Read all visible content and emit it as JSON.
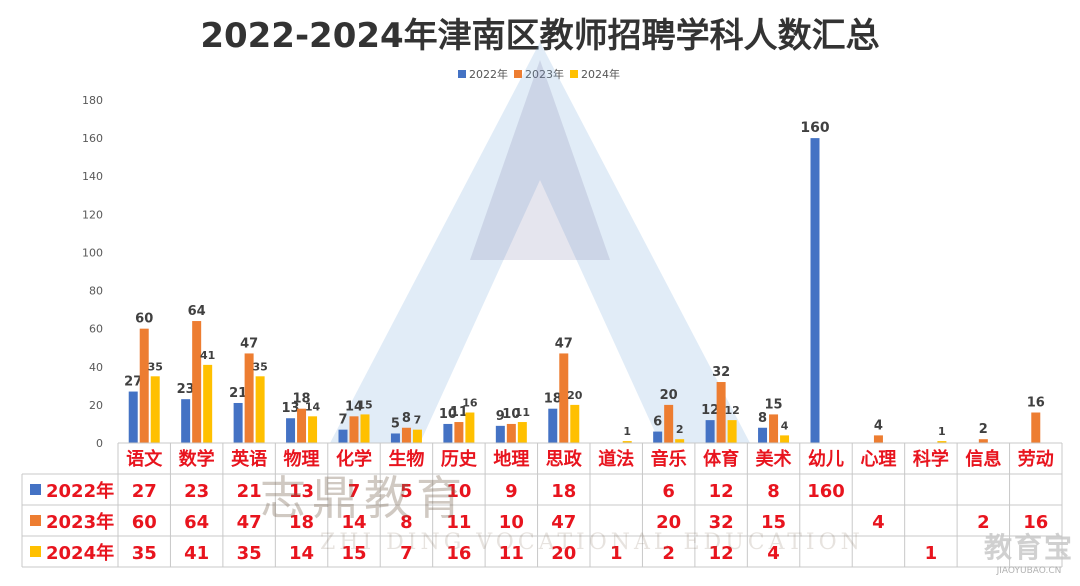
{
  "title": "2022-2024年津南区教师招聘学科人数汇总",
  "chart_data": {
    "type": "bar",
    "ylim": [
      0,
      180
    ],
    "yticks": [
      0,
      20,
      40,
      60,
      80,
      100,
      120,
      140,
      160,
      180
    ],
    "categories": [
      "语文",
      "数学",
      "英语",
      "物理",
      "化学",
      "生物",
      "历史",
      "地理",
      "思政",
      "道法",
      "音乐",
      "体育",
      "美术",
      "幼儿",
      "心理",
      "科学",
      "信息",
      "劳动"
    ],
    "series": [
      {
        "name": "2022年",
        "color": "#4472C4",
        "values": [
          27,
          23,
          21,
          13,
          7,
          5,
          10,
          9,
          18,
          null,
          6,
          12,
          8,
          160,
          null,
          null,
          null,
          null
        ]
      },
      {
        "name": "2023年",
        "color": "#ED7D31",
        "values": [
          60,
          64,
          47,
          18,
          14,
          8,
          11,
          10,
          47,
          null,
          20,
          32,
          15,
          null,
          4,
          null,
          2,
          16
        ]
      },
      {
        "name": "2024年",
        "color": "#FFC000",
        "values": [
          35,
          41,
          35,
          14,
          15,
          7,
          16,
          11,
          20,
          1,
          2,
          12,
          4,
          null,
          null,
          1,
          null,
          null
        ]
      }
    ],
    "legend_position": "top",
    "data_table": true
  },
  "watermark": {
    "center": "志鼎教育",
    "center_sub": "ZHI DING VOCATIONAL EDUCATION",
    "corner": "教育宝",
    "corner_url": "JIAOYUBAO.CN"
  }
}
